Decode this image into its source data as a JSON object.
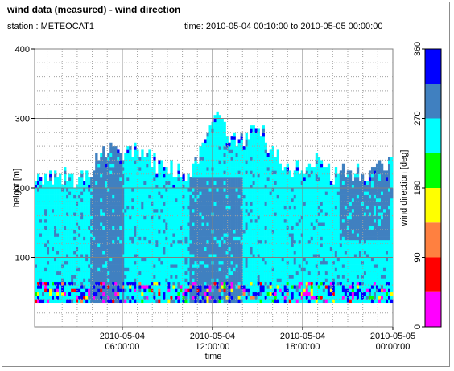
{
  "window": {
    "title": "wind data (measured) - wind direction",
    "station_text": "station : METEOCAT1",
    "time_text": "time: 2010-05-04 00:10:00 to 2010-05-05 00:00:00"
  },
  "chart_data": {
    "type": "heatmap",
    "xlabel": "time",
    "ylabel": "height [m]",
    "colorbar_label": "wind direction [deg]",
    "x_range": [
      "2010-05-04 00:10:00",
      "2010-05-05 00:00:00"
    ],
    "x_ticks": [
      {
        "value": "2010-05-04 06:00:00",
        "line1": "2010-05-04",
        "line2": "06:00:00"
      },
      {
        "value": "2010-05-04 12:00:00",
        "line1": "2010-05-04",
        "line2": "12:00:00"
      },
      {
        "value": "2010-05-04 18:00:00",
        "line1": "2010-05-04",
        "line2": "18:00:00"
      },
      {
        "value": "2010-05-05 00:00:00",
        "line1": "2010-05-05",
        "line2": "00:00:00"
      }
    ],
    "ylim": [
      0,
      400
    ],
    "y_ticks": [
      "100",
      "200",
      "300",
      "400"
    ],
    "grid": true,
    "colorbar": {
      "range": [
        0,
        360
      ],
      "ticks": [
        "0",
        "90",
        "180",
        "270",
        "360"
      ],
      "bins": [
        {
          "from": 0,
          "to": 45,
          "color": "#ff00ff"
        },
        {
          "from": 45,
          "to": 90,
          "color": "#ff0000"
        },
        {
          "from": 90,
          "to": 135,
          "color": "#ff8040"
        },
        {
          "from": 135,
          "to": 180,
          "color": "#ffff00"
        },
        {
          "from": 180,
          "to": 225,
          "color": "#00ff00"
        },
        {
          "from": 225,
          "to": 270,
          "color": "#00ffff"
        },
        {
          "from": 270,
          "to": 315,
          "color": "#4080c0"
        },
        {
          "from": 315,
          "to": 360,
          "color": "#0000ff"
        }
      ]
    },
    "data_height_range_m": [
      35,
      315
    ],
    "top_of_data_m": [
      {
        "time": "2010-05-04 00:10:00",
        "height": 220
      },
      {
        "time": "2010-05-04 01:00:00",
        "height": 210
      },
      {
        "time": "2010-05-04 02:00:00",
        "height": 215
      },
      {
        "time": "2010-05-04 03:00:00",
        "height": 205
      },
      {
        "time": "2010-05-04 04:00:00",
        "height": 230
      },
      {
        "time": "2010-05-04 05:00:00",
        "height": 250
      },
      {
        "time": "2010-05-04 06:00:00",
        "height": 240
      },
      {
        "time": "2010-05-04 07:00:00",
        "height": 255
      },
      {
        "time": "2010-05-04 08:00:00",
        "height": 235
      },
      {
        "time": "2010-05-04 09:00:00",
        "height": 225
      },
      {
        "time": "2010-05-04 10:00:00",
        "height": 215
      },
      {
        "time": "2010-05-04 11:00:00",
        "height": 240
      },
      {
        "time": "2010-05-04 12:00:00",
        "height": 300
      },
      {
        "time": "2010-05-04 13:00:00",
        "height": 275
      },
      {
        "time": "2010-05-04 14:00:00",
        "height": 265
      },
      {
        "time": "2010-05-04 15:00:00",
        "height": 285
      },
      {
        "time": "2010-05-04 16:00:00",
        "height": 250
      },
      {
        "time": "2010-05-04 17:00:00",
        "height": 230
      },
      {
        "time": "2010-05-04 18:00:00",
        "height": 220
      },
      {
        "time": "2010-05-04 19:00:00",
        "height": 235
      },
      {
        "time": "2010-05-04 20:00:00",
        "height": 215
      },
      {
        "time": "2010-05-04 21:00:00",
        "height": 225
      },
      {
        "time": "2010-05-04 22:00:00",
        "height": 215
      },
      {
        "time": "2010-05-04 23:00:00",
        "height": 230
      },
      {
        "time": "2010-05-05 00:00:00",
        "height": 235
      }
    ]
  }
}
